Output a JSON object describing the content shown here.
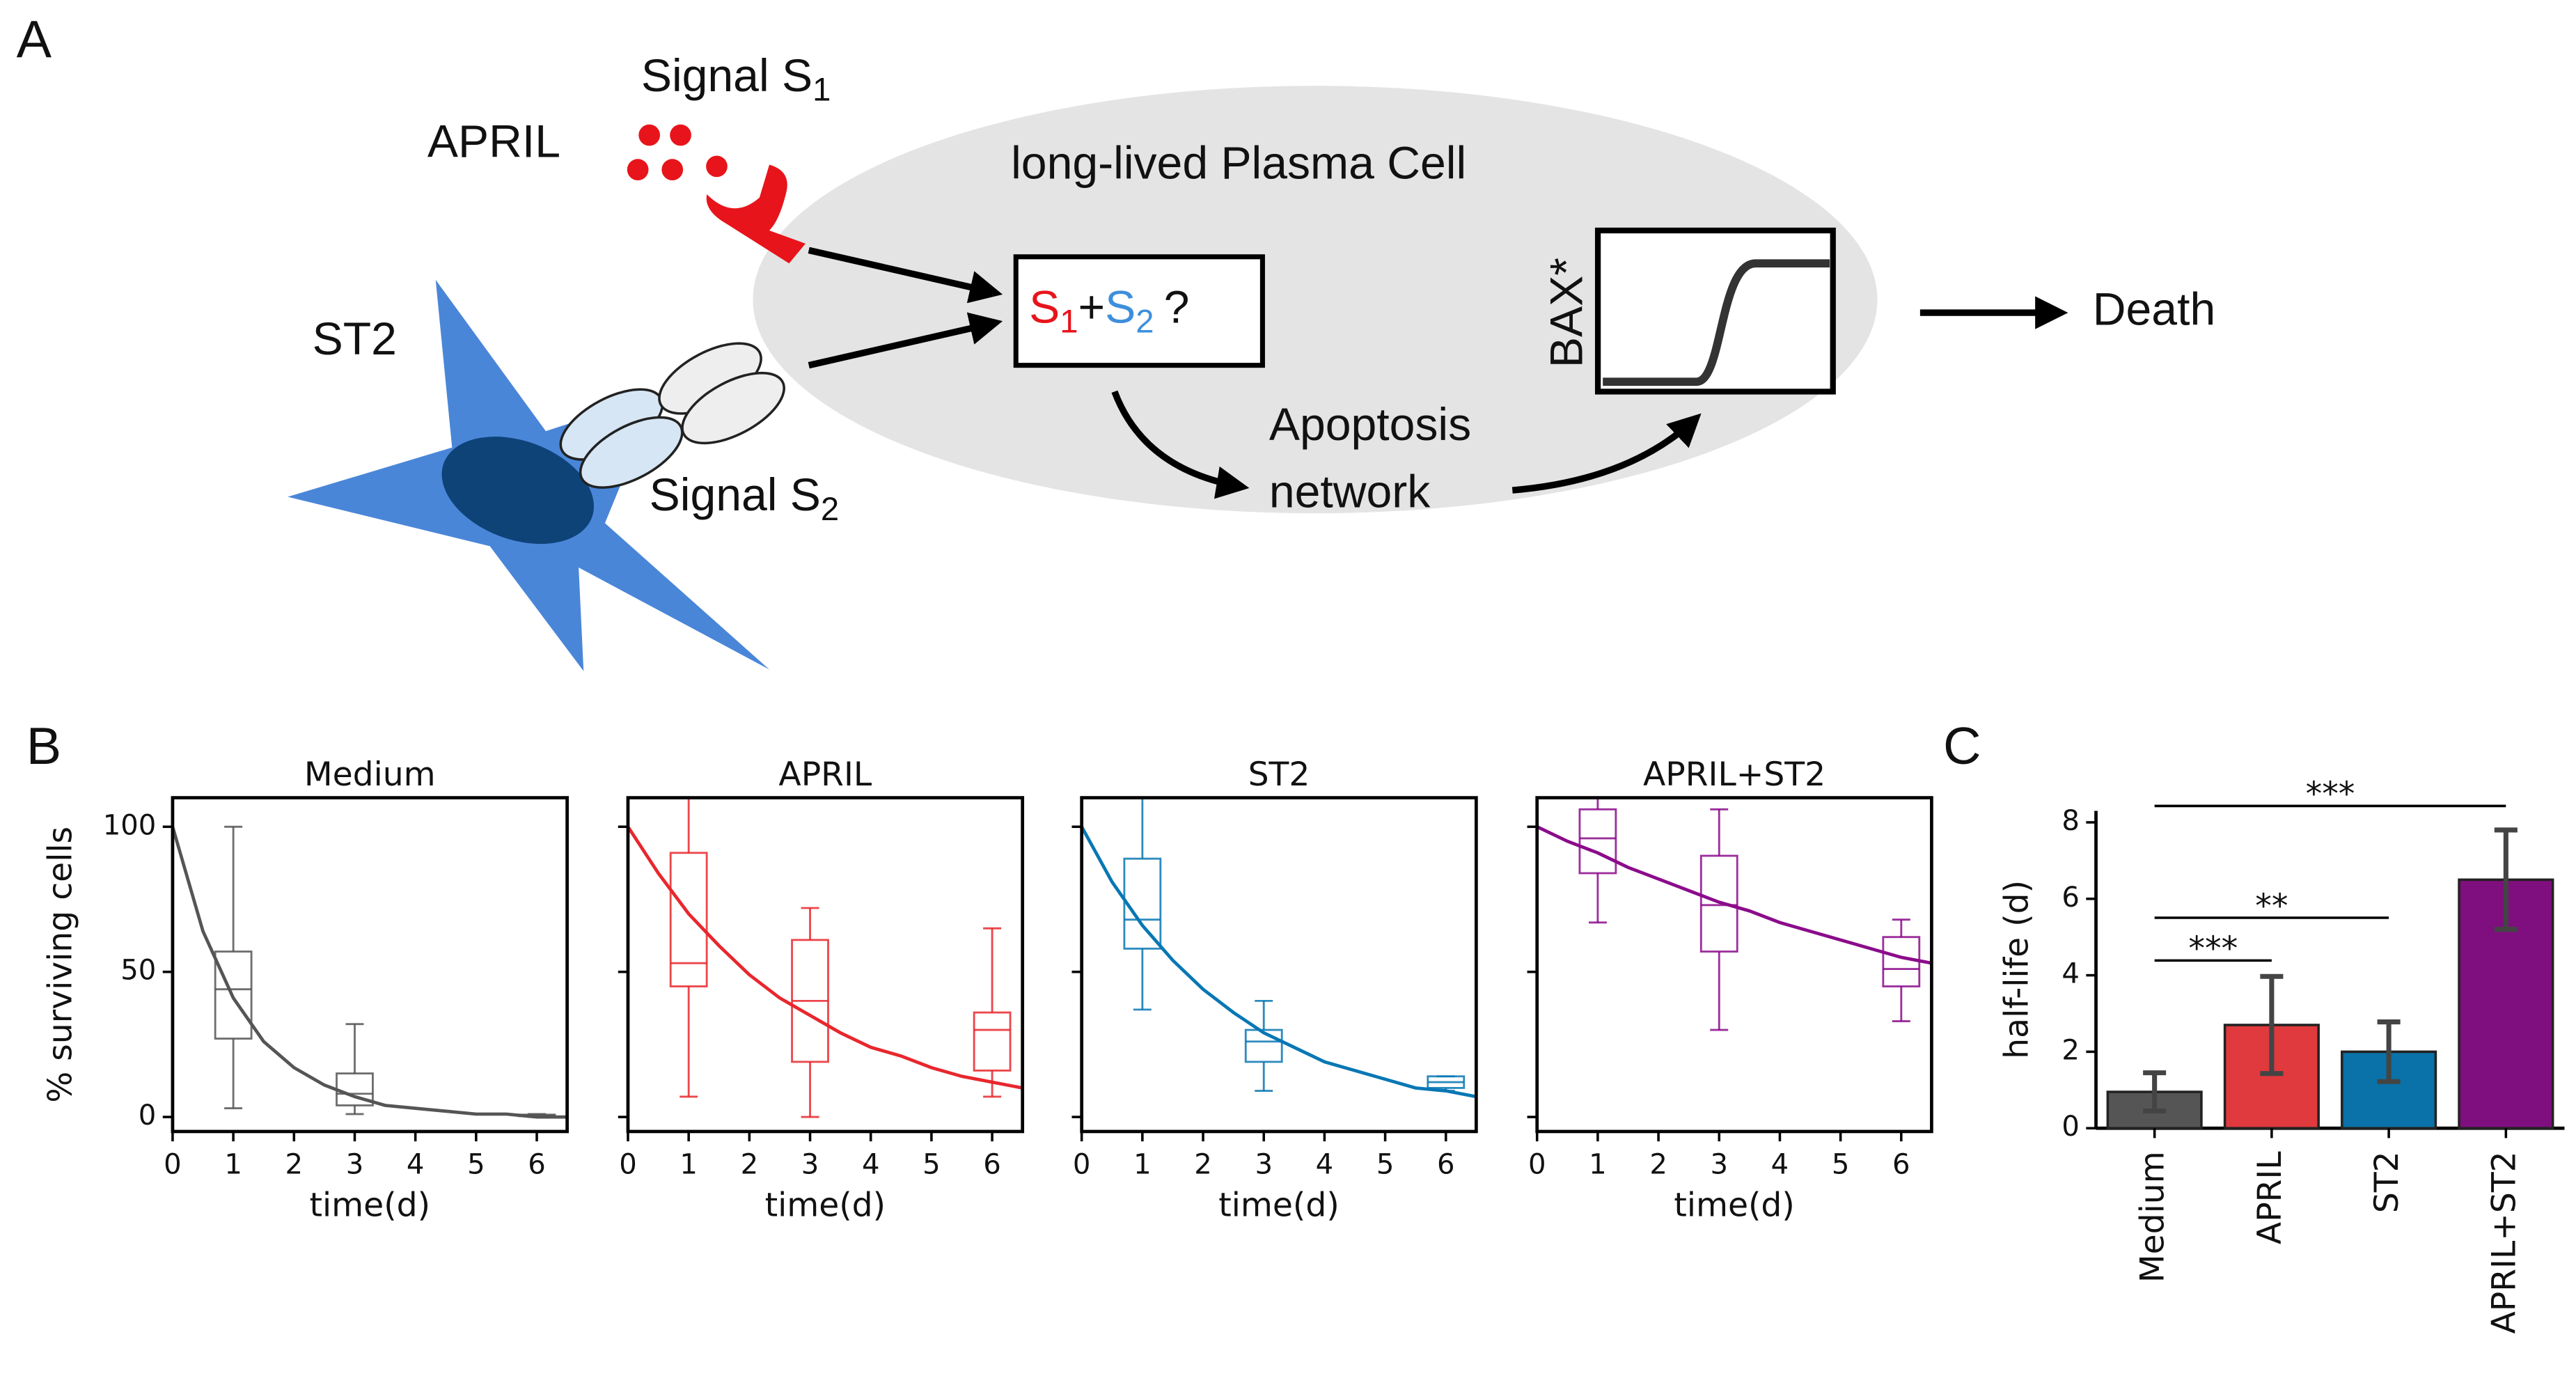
{
  "panel_labels": [
    "A",
    "B",
    "C"
  ],
  "diagram": {
    "signal1": {
      "text": "Signal S",
      "sub": "1"
    },
    "april": "APRIL",
    "st2": "ST2",
    "signal2": {
      "text": "Signal S",
      "sub": "2"
    },
    "cell": "long-lived Plasma Cell",
    "question": {
      "s1": "S",
      "s1_sub": "1",
      "plus": "+",
      "s2": "S",
      "s2_sub": "2",
      "q": "?"
    },
    "bax": "BAX*",
    "apoptosis": [
      "Apoptosis",
      "network"
    ],
    "death": "Death"
  },
  "chart_data": [
    {
      "type": "box",
      "title": "Medium",
      "xlabel": "time(d)",
      "ylabel": "% surviving cells",
      "color": "#555555",
      "xlim": [
        0,
        6.5
      ],
      "xticks": [
        0,
        1,
        2,
        3,
        4,
        5,
        6
      ],
      "ylim": [
        -5,
        110
      ],
      "yticks": [
        0,
        50,
        100
      ],
      "boxes": [
        {
          "x": 1,
          "whislo": 3,
          "q1": 27,
          "med": 44,
          "q3": 57,
          "whishi": 100
        },
        {
          "x": 3,
          "whislo": 1,
          "q1": 4,
          "med": 8,
          "q3": 15,
          "whishi": 32
        },
        {
          "x": 6,
          "whislo": 0,
          "q1": 0.3,
          "med": 0.5,
          "q3": 0.8,
          "whishi": 1
        }
      ],
      "fit": {
        "x": [
          0,
          0.5,
          1,
          1.5,
          2,
          2.5,
          3,
          3.5,
          4,
          4.5,
          5,
          5.5,
          6,
          6.5
        ],
        "values": [
          100,
          64,
          41,
          26,
          17,
          11,
          7,
          4,
          3,
          2,
          1,
          1,
          0,
          0
        ]
      }
    },
    {
      "type": "box",
      "title": "APRIL",
      "xlabel": "time(d)",
      "color": "#e8272d",
      "show_ytick_labels": false,
      "xlim": [
        0,
        6.5
      ],
      "xticks": [
        0,
        1,
        2,
        3,
        4,
        5,
        6
      ],
      "ylim": [
        -5,
        110
      ],
      "yticks": [
        0,
        50,
        100
      ],
      "boxes": [
        {
          "x": 1,
          "whislo": 7,
          "q1": 45,
          "med": 53,
          "q3": 91,
          "whishi": 112
        },
        {
          "x": 3,
          "whislo": 0,
          "q1": 19,
          "med": 40,
          "q3": 61,
          "whishi": 72
        },
        {
          "x": 6,
          "whislo": 7,
          "q1": 16,
          "med": 30,
          "q3": 36,
          "whishi": 65
        }
      ],
      "fit": {
        "x": [
          0,
          0.5,
          1,
          1.5,
          2,
          2.5,
          3,
          3.5,
          4,
          4.5,
          5,
          5.5,
          6,
          6.5
        ],
        "values": [
          100,
          84,
          70,
          59,
          49,
          41,
          35,
          29,
          24,
          21,
          17,
          14,
          12,
          10
        ]
      }
    },
    {
      "type": "box",
      "title": "ST2",
      "xlabel": "time(d)",
      "color": "#0877b4",
      "show_ytick_labels": false,
      "xlim": [
        0,
        6.5
      ],
      "xticks": [
        0,
        1,
        2,
        3,
        4,
        5,
        6
      ],
      "ylim": [
        -5,
        110
      ],
      "yticks": [
        0,
        50,
        100
      ],
      "boxes": [
        {
          "x": 1,
          "whislo": 37,
          "q1": 58,
          "med": 68,
          "q3": 89,
          "whishi": 112
        },
        {
          "x": 3,
          "whislo": 9,
          "q1": 19,
          "med": 26,
          "q3": 30,
          "whishi": 40
        },
        {
          "x": 6,
          "whislo": 9,
          "q1": 10,
          "med": 12,
          "q3": 14,
          "whishi": 14
        }
      ],
      "fit": {
        "x": [
          0,
          0.5,
          1,
          1.5,
          2,
          2.5,
          3,
          3.5,
          4,
          4.5,
          5,
          5.5,
          6,
          6.5
        ],
        "values": [
          100,
          81,
          66,
          54,
          44,
          36,
          29,
          24,
          19,
          16,
          13,
          10,
          9,
          7
        ]
      }
    },
    {
      "type": "box",
      "title": "APRIL+ST2",
      "xlabel": "time(d)",
      "color": "#8b0b8b",
      "show_ytick_labels": false,
      "xlim": [
        0,
        6.5
      ],
      "xticks": [
        0,
        1,
        2,
        3,
        4,
        5,
        6
      ],
      "ylim": [
        -5,
        110
      ],
      "yticks": [
        0,
        50,
        100
      ],
      "boxes": [
        {
          "x": 1,
          "whislo": 67,
          "q1": 84,
          "med": 96,
          "q3": 106,
          "whishi": 112
        },
        {
          "x": 3,
          "whislo": 30,
          "q1": 57,
          "med": 73,
          "q3": 90,
          "whishi": 106
        },
        {
          "x": 6,
          "whislo": 33,
          "q1": 45,
          "med": 51,
          "q3": 62,
          "whishi": 68
        }
      ],
      "fit": {
        "x": [
          0,
          0.5,
          1,
          1.5,
          2,
          2.5,
          3,
          3.5,
          4,
          4.5,
          5,
          5.5,
          6,
          6.5
        ],
        "values": [
          100,
          95,
          91,
          86,
          82,
          78,
          74,
          71,
          67,
          64,
          61,
          58,
          55,
          53
        ]
      }
    },
    {
      "type": "bar",
      "ylabel": "half-life (d)",
      "categories": [
        "Medium",
        "APRIL",
        "ST2",
        "APRIL+ST2"
      ],
      "values": [
        0.95,
        2.7,
        2.0,
        6.5
      ],
      "errors": [
        0.5,
        1.27,
        0.78,
        1.3
      ],
      "colors": [
        "#555555",
        "#e0393e",
        "#0a72a8",
        "#7f0f7e"
      ],
      "ylim": [
        0,
        8.3
      ],
      "yticks": [
        0,
        2,
        4,
        6,
        8
      ],
      "annotations": [
        {
          "text": "***",
          "from": 0,
          "to": 1
        },
        {
          "text": "**",
          "from": 0,
          "to": 2
        },
        {
          "text": "***",
          "from": 0,
          "to": 3
        }
      ]
    }
  ]
}
